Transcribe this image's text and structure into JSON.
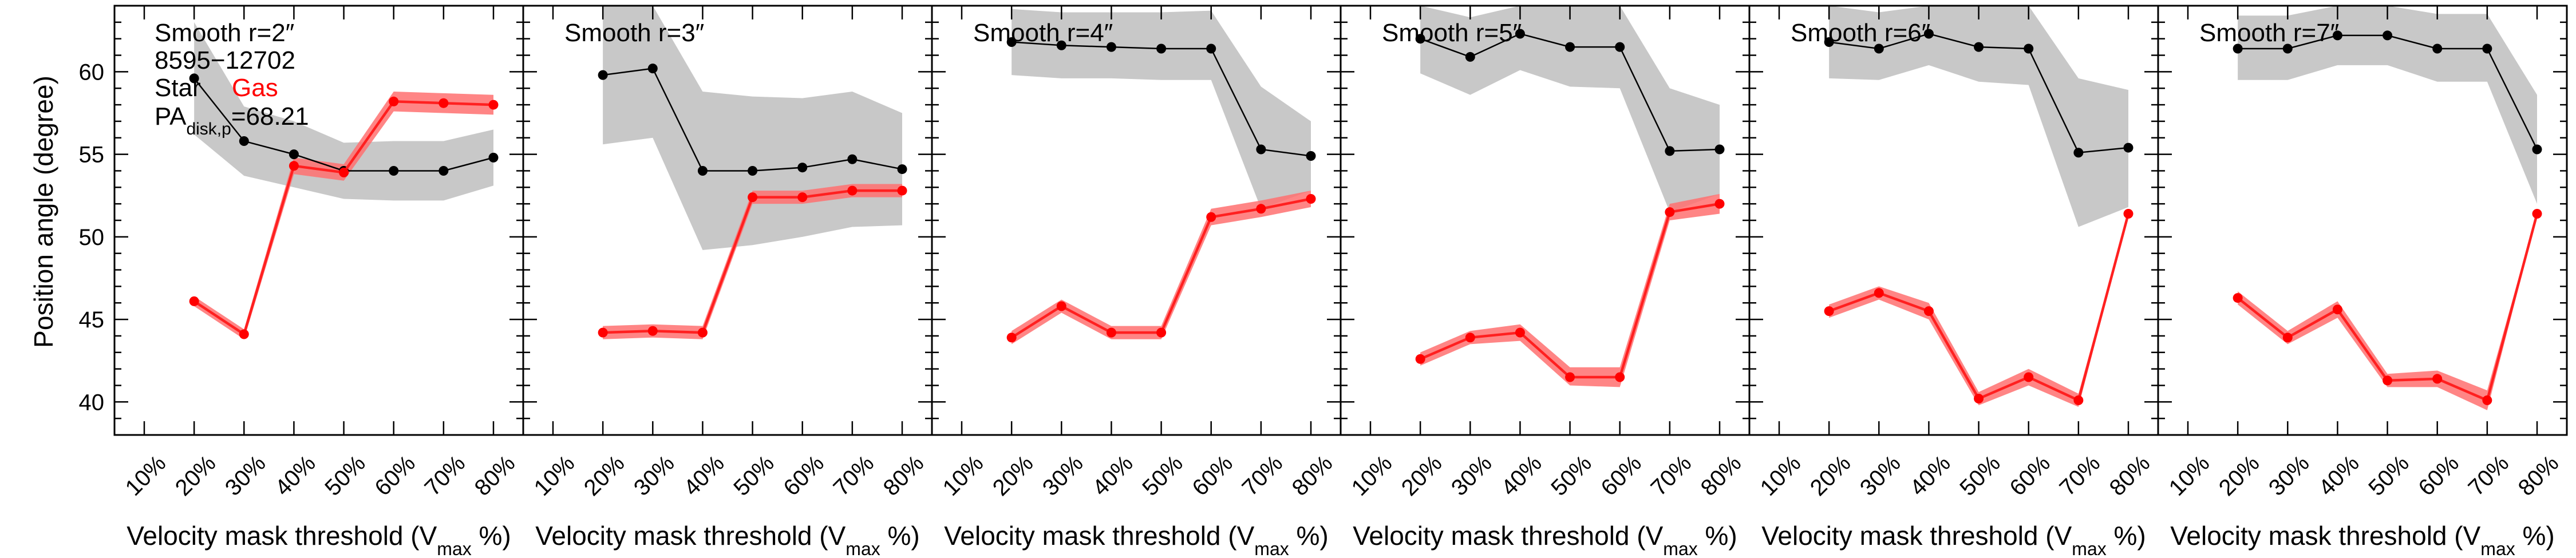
{
  "figure": {
    "ylabel": "Position angle (degree)",
    "xlabel_main": "Velocity mask threshold (V",
    "xlabel_sub": "max",
    "xlabel_tail": " %)",
    "legend": {
      "id": "8595−12702",
      "star": "Star",
      "gas": "Gas",
      "pa_main": "PA",
      "pa_sub": "disk,p",
      "pa_value": "=68.21"
    }
  },
  "colors": {
    "star_line": "#000000",
    "star_band": "#c8c8c8",
    "gas_line": "#ff2020",
    "gas_band": "#ff7070",
    "gas_text": "#ff0000",
    "axis": "#000000"
  },
  "chart_data": [
    {
      "type": "line",
      "title": "Smooth r=2″",
      "x": [
        "10%",
        "20%",
        "30%",
        "40%",
        "50%",
        "60%",
        "70%",
        "80%"
      ],
      "ylim": [
        38,
        64
      ],
      "yticks": [
        40,
        45,
        50,
        55,
        60
      ],
      "series": [
        {
          "name": "Star",
          "values": [
            null,
            59.6,
            55.8,
            55.0,
            54.0,
            54.0,
            54.0,
            54.8
          ],
          "lower": [
            null,
            56.2,
            53.7,
            53.0,
            52.3,
            52.2,
            52.2,
            53.1
          ],
          "upper": [
            null,
            63.0,
            57.9,
            57.0,
            55.7,
            55.8,
            55.8,
            56.5
          ]
        },
        {
          "name": "Gas",
          "values": [
            null,
            46.1,
            44.1,
            54.3,
            53.9,
            58.2,
            58.1,
            58.0
          ],
          "lower": [
            null,
            45.8,
            43.8,
            53.8,
            53.4,
            57.6,
            57.5,
            57.4
          ],
          "upper": [
            null,
            46.4,
            44.4,
            54.8,
            54.4,
            58.8,
            58.7,
            58.6
          ]
        }
      ]
    },
    {
      "type": "line",
      "title": "Smooth r=3″",
      "x": [
        "10%",
        "20%",
        "30%",
        "40%",
        "50%",
        "60%",
        "70%",
        "80%"
      ],
      "ylim": [
        38,
        64
      ],
      "yticks": [
        40,
        45,
        50,
        55,
        60
      ],
      "series": [
        {
          "name": "Star",
          "values": [
            null,
            59.8,
            60.2,
            54.0,
            54.0,
            54.2,
            54.7,
            54.1
          ],
          "lower": [
            null,
            55.6,
            56.0,
            49.2,
            49.5,
            50.0,
            50.6,
            50.7
          ],
          "upper": [
            null,
            64.0,
            64.0,
            58.8,
            58.5,
            58.4,
            58.8,
            57.5
          ]
        },
        {
          "name": "Gas",
          "values": [
            null,
            44.2,
            44.3,
            44.2,
            52.4,
            52.4,
            52.8,
            52.8
          ],
          "lower": [
            null,
            43.8,
            43.9,
            43.8,
            52.0,
            52.0,
            52.4,
            52.4
          ],
          "upper": [
            null,
            44.6,
            44.7,
            44.6,
            52.8,
            52.8,
            53.2,
            53.2
          ]
        }
      ]
    },
    {
      "type": "line",
      "title": "Smooth r=4″",
      "x": [
        "10%",
        "20%",
        "30%",
        "40%",
        "50%",
        "60%",
        "70%",
        "80%"
      ],
      "ylim": [
        38,
        64
      ],
      "yticks": [
        40,
        45,
        50,
        55,
        60
      ],
      "series": [
        {
          "name": "Star",
          "values": [
            null,
            61.8,
            61.6,
            61.5,
            61.4,
            61.4,
            55.3,
            54.9
          ],
          "lower": [
            null,
            59.8,
            59.6,
            59.6,
            59.5,
            59.5,
            51.7,
            52.8
          ],
          "upper": [
            null,
            63.8,
            63.6,
            63.6,
            63.6,
            63.7,
            59.1,
            57.0
          ]
        },
        {
          "name": "Gas",
          "values": [
            null,
            43.9,
            45.8,
            44.2,
            44.2,
            51.2,
            51.7,
            52.3
          ],
          "lower": [
            null,
            43.5,
            45.4,
            43.8,
            43.8,
            50.7,
            51.2,
            51.8
          ],
          "upper": [
            null,
            44.3,
            46.2,
            44.6,
            44.6,
            51.7,
            52.2,
            52.8
          ]
        }
      ]
    },
    {
      "type": "line",
      "title": "Smooth r=5″",
      "x": [
        "10%",
        "20%",
        "30%",
        "40%",
        "50%",
        "60%",
        "70%",
        "80%"
      ],
      "ylim": [
        38,
        64
      ],
      "yticks": [
        40,
        45,
        50,
        55,
        60
      ],
      "series": [
        {
          "name": "Star",
          "values": [
            null,
            62.0,
            60.9,
            62.3,
            61.5,
            61.5,
            55.2,
            55.3
          ],
          "lower": [
            null,
            59.9,
            58.6,
            60.1,
            59.1,
            59.0,
            51.5,
            52.6
          ],
          "upper": [
            null,
            64.0,
            63.3,
            64.0,
            64.0,
            64.0,
            59.0,
            58.0
          ]
        },
        {
          "name": "Gas",
          "values": [
            null,
            42.6,
            43.9,
            44.2,
            41.5,
            41.5,
            51.5,
            52.0
          ],
          "lower": [
            null,
            42.2,
            43.5,
            43.7,
            41.0,
            40.9,
            51.0,
            51.4
          ],
          "upper": [
            null,
            43.0,
            44.3,
            44.7,
            42.1,
            42.1,
            52.0,
            52.6
          ]
        }
      ]
    },
    {
      "type": "line",
      "title": "Smooth r=6″",
      "x": [
        "10%",
        "20%",
        "30%",
        "40%",
        "50%",
        "60%",
        "70%",
        "80%"
      ],
      "ylim": [
        38,
        64
      ],
      "yticks": [
        40,
        45,
        50,
        55,
        60
      ],
      "series": [
        {
          "name": "Star",
          "values": [
            null,
            61.8,
            61.4,
            62.3,
            61.5,
            61.4,
            55.1,
            55.4
          ],
          "lower": [
            null,
            59.6,
            59.5,
            60.4,
            59.4,
            59.2,
            50.6,
            51.8
          ],
          "upper": [
            null,
            64.0,
            63.6,
            64.0,
            64.0,
            64.0,
            59.6,
            58.9
          ]
        },
        {
          "name": "Gas",
          "values": [
            null,
            45.5,
            46.6,
            45.5,
            40.2,
            41.5,
            40.1,
            51.4
          ],
          "lower": [
            null,
            45.1,
            46.2,
            45.0,
            39.8,
            41.0,
            39.7,
            51.3
          ],
          "upper": [
            null,
            45.9,
            47.0,
            46.0,
            40.6,
            42.0,
            40.5,
            51.5
          ]
        }
      ]
    },
    {
      "type": "line",
      "title": "Smooth r=7″",
      "x": [
        "10%",
        "20%",
        "30%",
        "40%",
        "50%",
        "60%",
        "70%",
        "80%"
      ],
      "ylim": [
        38,
        64
      ],
      "yticks": [
        40,
        45,
        50,
        55,
        60
      ],
      "series": [
        {
          "name": "Star",
          "values": [
            null,
            61.4,
            61.4,
            62.2,
            62.2,
            61.4,
            61.4,
            55.3
          ],
          "lower": [
            null,
            59.5,
            59.5,
            60.4,
            60.4,
            59.4,
            59.4,
            52.0
          ],
          "upper": [
            null,
            63.4,
            63.4,
            64.0,
            64.0,
            63.5,
            63.5,
            58.6
          ]
        },
        {
          "name": "Gas",
          "values": [
            null,
            46.3,
            43.9,
            45.6,
            41.3,
            41.4,
            40.1,
            51.4
          ],
          "lower": [
            null,
            45.9,
            43.5,
            45.1,
            40.9,
            40.9,
            39.5,
            51.3
          ],
          "upper": [
            null,
            46.7,
            44.3,
            46.1,
            41.7,
            41.9,
            40.7,
            51.5
          ]
        }
      ]
    }
  ]
}
